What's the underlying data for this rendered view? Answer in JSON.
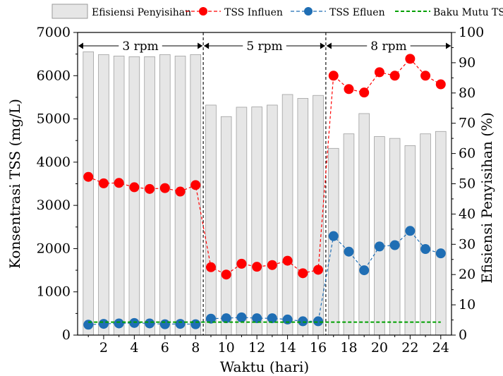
{
  "chart_data": {
    "type": "bar",
    "legend": {
      "placement": "top",
      "entries": [
        {
          "label": "Efisiensi Penyisihan",
          "kind": "bar"
        },
        {
          "label": "TSS Influen",
          "kind": "line-marker"
        },
        {
          "label": "TSS Efluen",
          "kind": "line-marker"
        },
        {
          "label": "Baku Mutu TSS",
          "kind": "dashed-line"
        }
      ]
    },
    "xlabel": "Waktu (hari)",
    "ylabel_left": "Konsentrasi TSS (mg/L)",
    "ylabel_right": "Efisiensi Penyisihan (%)",
    "xlim": [
      0.3,
      24.7
    ],
    "ylim_left": [
      0,
      7000
    ],
    "ylim_right": [
      0,
      100
    ],
    "xticks": [
      2,
      4,
      6,
      8,
      10,
      12,
      14,
      16,
      18,
      20,
      22,
      24
    ],
    "yticks_left": [
      0,
      1000,
      2000,
      3000,
      4000,
      5000,
      6000,
      7000
    ],
    "yticks_right": [
      0,
      10,
      20,
      30,
      40,
      50,
      60,
      70,
      80,
      90,
      100
    ],
    "grid": false,
    "x": [
      1,
      2,
      3,
      4,
      5,
      6,
      7,
      8,
      9,
      10,
      11,
      12,
      13,
      14,
      15,
      16,
      17,
      18,
      19,
      20,
      21,
      22,
      23,
      24
    ],
    "series": [
      {
        "name": "Efisiensi Penyisihan",
        "type": "bar",
        "axis": "right",
        "color": "#e6e6e6",
        "values": [
          93.6,
          92.7,
          92.2,
          92.0,
          92.0,
          92.7,
          92.2,
          92.7,
          76.0,
          72.2,
          75.3,
          75.4,
          76.0,
          79.5,
          78.2,
          79.2,
          61.7,
          66.5,
          73.2,
          65.6,
          65.0,
          62.6,
          66.5,
          67.3
        ]
      },
      {
        "name": "TSS Influen",
        "type": "line",
        "axis": "left",
        "color": "#ff0000",
        "values": [
          3660,
          3510,
          3520,
          3420,
          3380,
          3400,
          3320,
          3470,
          1570,
          1400,
          1650,
          1580,
          1620,
          1720,
          1430,
          1510,
          6000,
          5690,
          5610,
          6080,
          6000,
          6390,
          6000,
          5800
        ]
      },
      {
        "name": "TSS Efluen",
        "type": "line",
        "axis": "left",
        "color": "#1f6eb4",
        "values": [
          240,
          260,
          270,
          280,
          270,
          250,
          260,
          250,
          380,
          390,
          410,
          390,
          390,
          360,
          320,
          320,
          2290,
          1930,
          1500,
          2050,
          2080,
          2410,
          1990,
          1890
        ]
      },
      {
        "name": "Baku Mutu TSS",
        "type": "line",
        "axis": "left",
        "color": "#00a000",
        "values": [
          300,
          300,
          300,
          300,
          300,
          300,
          300,
          300,
          300,
          300,
          300,
          300,
          300,
          300,
          300,
          300,
          300,
          300,
          300,
          300,
          300,
          300,
          300,
          300
        ]
      }
    ],
    "phases": [
      {
        "label": "3 rpm",
        "start": 0.3,
        "end": 8.5
      },
      {
        "label": "5 rpm",
        "start": 8.5,
        "end": 16.5
      },
      {
        "label": "8 rpm",
        "start": 16.5,
        "end": 24.7
      }
    ],
    "phase_dividers": [
      8.5,
      16.5
    ]
  }
}
